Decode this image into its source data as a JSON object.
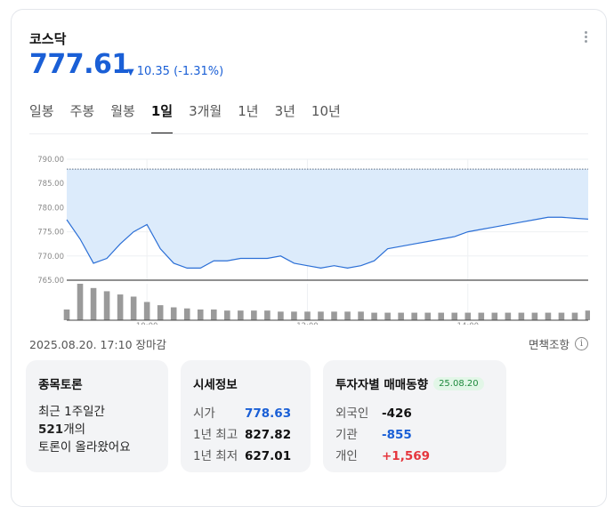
{
  "header": {
    "title": "코스닥",
    "price": "777.61",
    "change": "10.35",
    "change_pct": "(-1.31%)",
    "direction": "down"
  },
  "tabs": [
    "일봉",
    "주봉",
    "월봉",
    "1일",
    "3개월",
    "1년",
    "3년",
    "10년"
  ],
  "active_tab": "1일",
  "chart_data": {
    "type": "area",
    "title": "",
    "y_ticks": [
      "790.00",
      "785.00",
      "780.00",
      "775.00",
      "770.00",
      "765.00"
    ],
    "ylim": [
      765,
      790
    ],
    "x_ticks": [
      "10:00",
      "12:00",
      "14:00"
    ],
    "prev_close": 787.96,
    "x": [
      "09:00",
      "09:10",
      "09:20",
      "09:30",
      "09:40",
      "09:50",
      "10:00",
      "10:10",
      "10:20",
      "10:30",
      "10:40",
      "10:50",
      "11:00",
      "11:10",
      "11:20",
      "11:30",
      "11:40",
      "11:50",
      "12:00",
      "12:10",
      "12:20",
      "12:30",
      "12:40",
      "12:50",
      "13:00",
      "13:10",
      "13:20",
      "13:30",
      "13:40",
      "13:50",
      "14:00",
      "14:10",
      "14:20",
      "14:30",
      "14:40",
      "14:50",
      "15:00",
      "15:10",
      "15:20",
      "15:30"
    ],
    "values": [
      777.5,
      773.5,
      768.5,
      769.5,
      772.5,
      775.0,
      776.5,
      771.5,
      768.5,
      767.5,
      767.5,
      769.0,
      769.0,
      769.5,
      769.5,
      769.5,
      770.0,
      768.5,
      768.0,
      767.5,
      768.0,
      767.5,
      768.0,
      769.0,
      771.5,
      772.0,
      772.5,
      773.0,
      773.5,
      774.0,
      775.0,
      775.5,
      776.0,
      776.5,
      777.0,
      777.5,
      778.0,
      778.0,
      777.8,
      777.61
    ],
    "volume": [
      10,
      34,
      30,
      27,
      24,
      22,
      17,
      14,
      12,
      11,
      10,
      10,
      9,
      9,
      9,
      9,
      8,
      8,
      8,
      8,
      8,
      8,
      8,
      7,
      7,
      7,
      7,
      7,
      7,
      7,
      7,
      7,
      7,
      7,
      7,
      7,
      7,
      7,
      7,
      9
    ]
  },
  "meta": {
    "date": "2025.08.20. 17:10",
    "status": "장마감",
    "disclaimer": "면책조항",
    "info_icon": "i"
  },
  "discussion": {
    "title": "종목토론",
    "line1": "최근 1주일간",
    "count": "521",
    "line2_suffix": "개의",
    "line3": "토론이 올라왔어요"
  },
  "quote": {
    "title": "시세정보",
    "rows": [
      {
        "label": "시가",
        "value": "778.63"
      },
      {
        "label": "1년 최고",
        "value": "827.82"
      },
      {
        "label": "1년 최저",
        "value": "627.01"
      }
    ]
  },
  "investors": {
    "title": "투자자별 매매동향",
    "date_badge": "25.08.20",
    "rows": [
      {
        "label": "외국인",
        "value": "-426"
      },
      {
        "label": "기관",
        "value": "-855"
      },
      {
        "label": "개인",
        "value": "+1,569"
      }
    ]
  },
  "colors": {
    "accent_blue": "#1a5fd6",
    "up_red": "#e5363d",
    "area_fill": "#dcebfb",
    "area_line": "#2b6fd6"
  }
}
